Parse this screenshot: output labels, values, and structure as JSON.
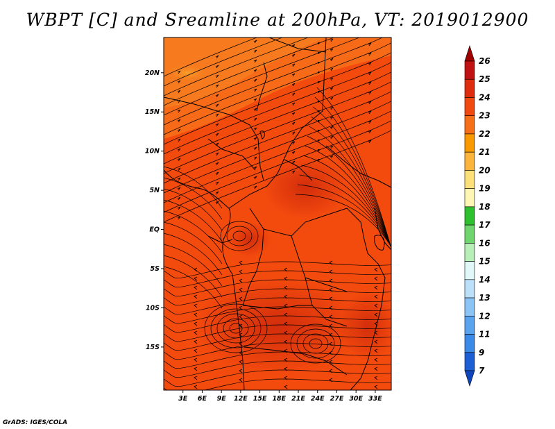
{
  "title": "WBPT [C] and Sreamline at 200hPa, VT: 2019012900",
  "credit": "GrADS: IGES/COLA",
  "map": {
    "lon_range": [
      0,
      35.5
    ],
    "lat_range": [
      -20.5,
      24.5
    ],
    "x_ticks": [
      {
        "value": 3,
        "label": "3E"
      },
      {
        "value": 6,
        "label": "6E"
      },
      {
        "value": 9,
        "label": "9E"
      },
      {
        "value": 12,
        "label": "12E"
      },
      {
        "value": 15,
        "label": "15E"
      },
      {
        "value": 18,
        "label": "18E"
      },
      {
        "value": 21,
        "label": "21E"
      },
      {
        "value": 24,
        "label": "24E"
      },
      {
        "value": 27,
        "label": "27E"
      },
      {
        "value": 30,
        "label": "30E"
      },
      {
        "value": 33,
        "label": "33E"
      }
    ],
    "y_ticks": [
      {
        "value": 20,
        "label": "20N"
      },
      {
        "value": 15,
        "label": "15N"
      },
      {
        "value": 10,
        "label": "10N"
      },
      {
        "value": 5,
        "label": "5N"
      },
      {
        "value": 0,
        "label": "EQ"
      },
      {
        "value": -5,
        "label": "5S"
      },
      {
        "value": -10,
        "label": "10S"
      },
      {
        "value": -15,
        "label": "15S"
      }
    ],
    "field_colors": {
      "dominant": "#f34a0e",
      "warm_core": "#d8300e",
      "cooler": "#f77f20",
      "coolest": "#f9a22c"
    }
  },
  "colorbar": {
    "labels": [
      "26",
      "25",
      "24",
      "23",
      "22",
      "21",
      "20",
      "19",
      "18",
      "17",
      "16",
      "15",
      "14",
      "13",
      "12",
      "11",
      "9",
      "7"
    ],
    "colors": [
      "#a10000",
      "#c01212",
      "#dd2d0e",
      "#f04a10",
      "#f6701a",
      "#f99a00",
      "#fbb43c",
      "#fce17a",
      "#fdf6b4",
      "#2ec02e",
      "#6fd56f",
      "#b8efb8",
      "#e0f8f8",
      "#bde0fa",
      "#8cc4f5",
      "#5aa4ef",
      "#3c8ae8",
      "#1c5fd4",
      "#0e45bd"
    ]
  }
}
